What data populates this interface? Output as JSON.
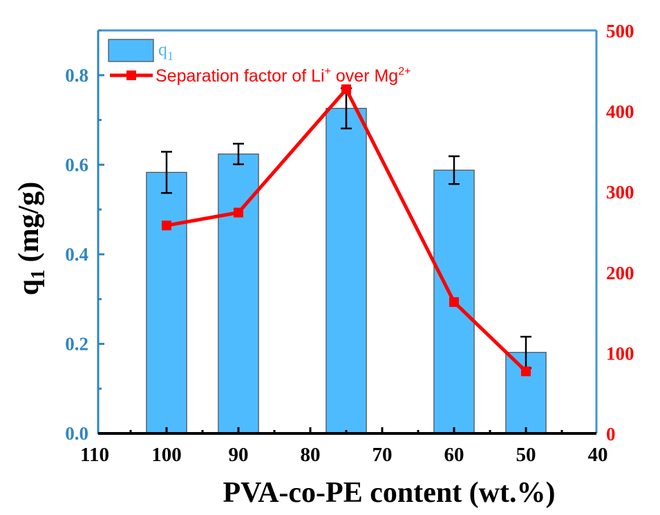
{
  "chart_data": {
    "type": "bar+line",
    "title": "",
    "xlabel": "PVA-co-PE content (wt.%)",
    "ylabel": "q",
    "ylabel_sub": "1",
    "ylabel_unit": " (mg/g)",
    "xlim": [
      110,
      40
    ],
    "ylim_left": [
      0,
      0.9
    ],
    "ylim_right": [
      0,
      500
    ],
    "x_ticks": [
      110,
      100,
      90,
      80,
      70,
      60,
      50,
      40
    ],
    "x_tick_labels": [
      "110",
      "100",
      "90",
      "80",
      "70",
      "60",
      "50",
      "40"
    ],
    "y_left_ticks": [
      0.0,
      0.2,
      0.4,
      0.6,
      0.8
    ],
    "y_left_tick_labels": [
      "0.0",
      "0.2",
      "0.4",
      "0.6",
      "0.8"
    ],
    "y_right_ticks": [
      0,
      100,
      200,
      300,
      400,
      500
    ],
    "y_right_tick_labels": [
      "0",
      "100",
      "200",
      "300",
      "400",
      "500"
    ],
    "grid": false,
    "legend_position": "top-left",
    "bar_width": 5.6,
    "series": [
      {
        "name": "q1",
        "legend_label": "q",
        "legend_sub": "1",
        "type": "bar",
        "axis": "left",
        "x": [
          100,
          90,
          75,
          60,
          50
        ],
        "values": [
          0.583,
          0.624,
          0.726,
          0.588,
          0.181
        ],
        "errors": [
          0.046,
          0.023,
          0.045,
          0.031,
          0.035
        ]
      },
      {
        "name": "Separation factor of Li+ over Mg2+",
        "legend_parts": [
          "Separation factor of Li",
          "+",
          " over Mg",
          "2+"
        ],
        "type": "line",
        "axis": "right",
        "x": [
          100,
          90,
          75,
          60,
          50
        ],
        "values": [
          258,
          274,
          427,
          163,
          77
        ]
      }
    ],
    "colors": {
      "bar_fill": "#4fbbff",
      "bar_edge": "#4a4a4a",
      "left_axis": "#2e86c1",
      "right_axis": "#ff0000",
      "line": "#ff0000",
      "x_axis": "#000000",
      "frame": "#3f96d4",
      "legend_q": "#4fb8f0"
    }
  }
}
